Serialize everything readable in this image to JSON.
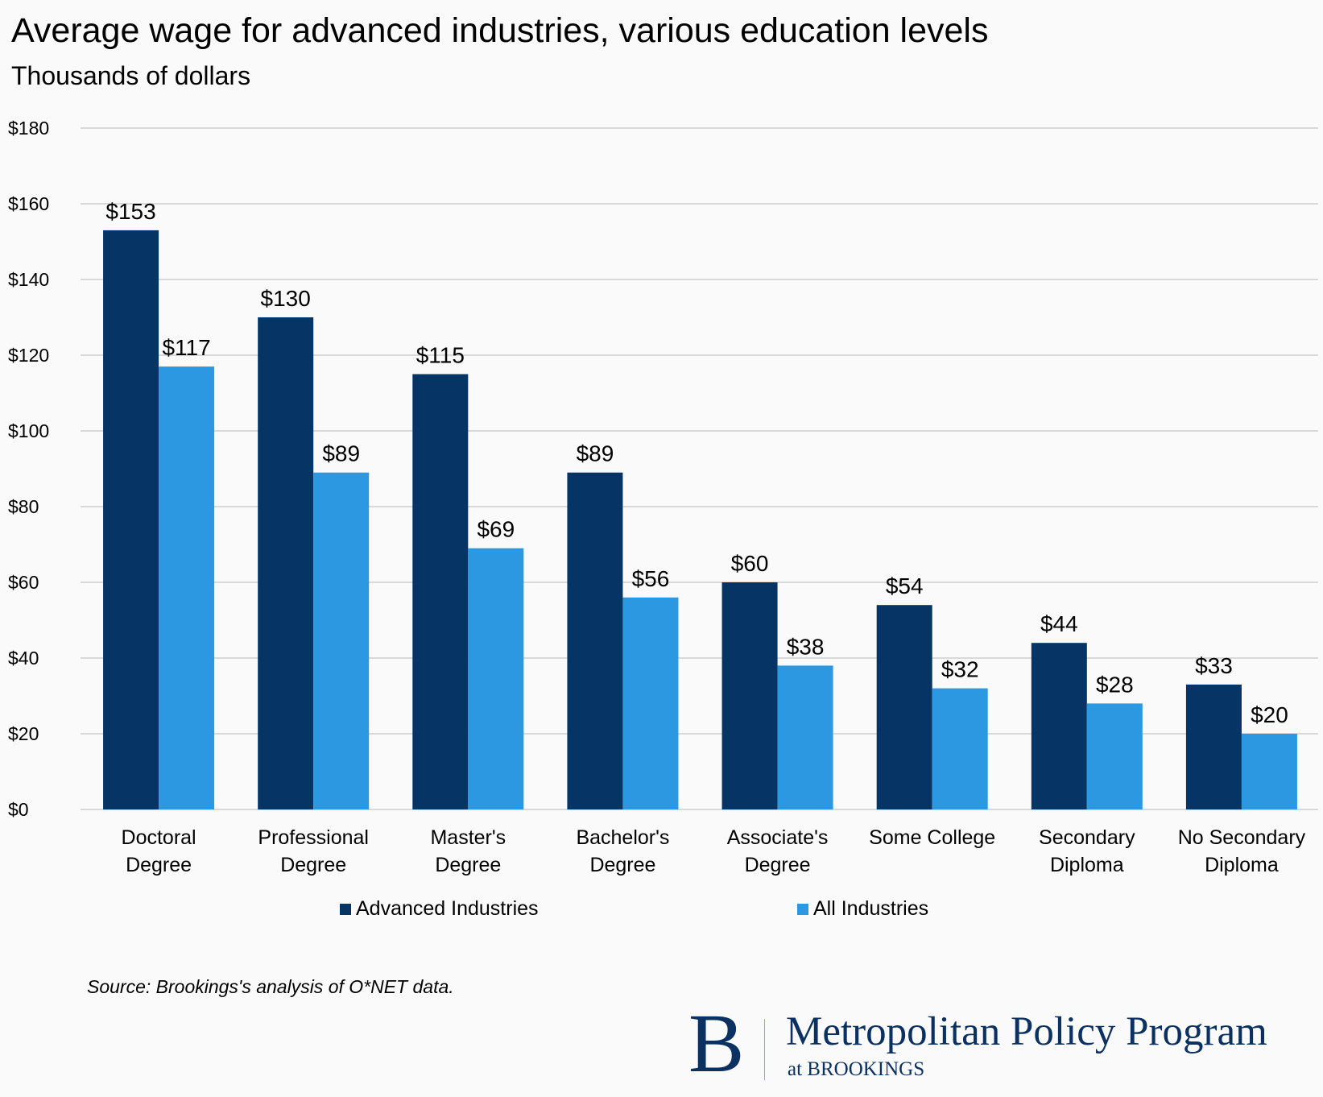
{
  "chart_data": {
    "type": "bar",
    "title": "Average wage for advanced industries, various education levels",
    "subtitle": "Thousands of dollars",
    "xlabel": "",
    "ylabel": "",
    "ylim": [
      0,
      180
    ],
    "yticks": [
      0,
      20,
      40,
      60,
      80,
      100,
      120,
      140,
      160,
      180
    ],
    "ytick_prefix": "$",
    "grid": true,
    "legend_position": "bottom",
    "categories": [
      [
        "Doctoral",
        "Degree"
      ],
      [
        "Professional",
        "Degree"
      ],
      [
        "Master's",
        "Degree"
      ],
      [
        "Bachelor's",
        "Degree"
      ],
      [
        "Associate's",
        "Degree"
      ],
      [
        "Some College"
      ],
      [
        "Secondary",
        "Diploma"
      ],
      [
        "No Secondary",
        "Diploma"
      ]
    ],
    "series": [
      {
        "name": "Advanced Industries",
        "color": "#063565",
        "values": [
          153,
          130,
          115,
          89,
          60,
          54,
          44,
          33
        ]
      },
      {
        "name": "All Industries",
        "color": "#2b98e1",
        "values": [
          117,
          89,
          69,
          56,
          38,
          32,
          28,
          20
        ]
      }
    ],
    "source": "Source: Brookings's analysis of O*NET data."
  },
  "logo": {
    "letter": "B",
    "name": "Metropolitan Policy Program",
    "sub": "at BROOKINGS"
  }
}
